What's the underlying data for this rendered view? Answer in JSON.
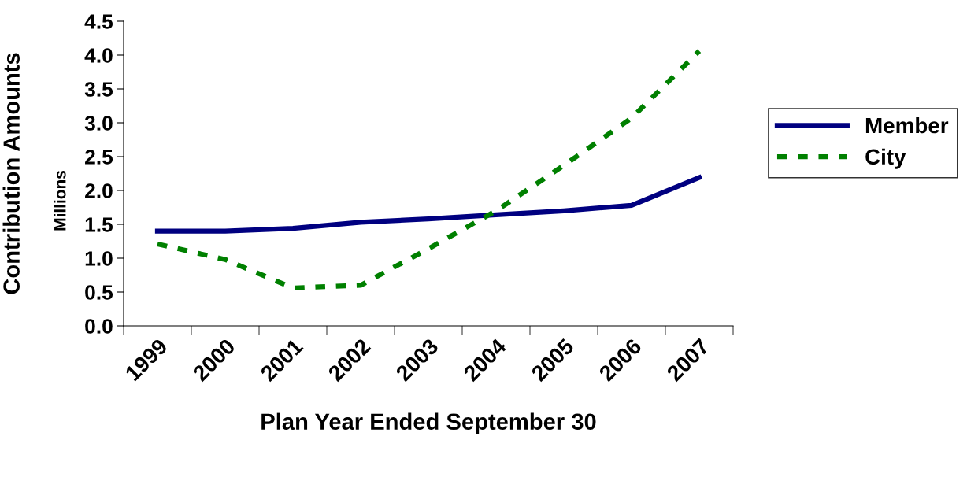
{
  "chart_data": {
    "type": "line",
    "xlabel": "Plan Year Ended September 30",
    "ylabel": "Contribution Amounts",
    "annotations": [
      "Millions"
    ],
    "categories": [
      "1999",
      "2000",
      "2001",
      "2002",
      "2003",
      "2004",
      "2005",
      "2006",
      "2007"
    ],
    "series": [
      {
        "name": "Member",
        "color": "#000080",
        "line_style": "solid",
        "values": [
          1.4,
          1.4,
          1.44,
          1.53,
          1.58,
          1.64,
          1.7,
          1.78,
          2.19
        ]
      },
      {
        "name": "City",
        "color": "#008000",
        "line_style": "dashed",
        "values": [
          1.21,
          0.98,
          0.56,
          0.6,
          1.14,
          1.7,
          2.37,
          3.07,
          4.06
        ]
      }
    ],
    "ylim": [
      0,
      4.5
    ],
    "yticks": [
      {
        "value": 0,
        "label": "0.0"
      },
      {
        "value": 0.5,
        "label": "0.5"
      },
      {
        "value": 1,
        "label": "1.0"
      },
      {
        "value": 1.5,
        "label": "1.5"
      },
      {
        "value": 2,
        "label": "2.0"
      },
      {
        "value": 2.5,
        "label": "2.5"
      },
      {
        "value": 3,
        "label": "3.0"
      },
      {
        "value": 3.5,
        "label": "3.5"
      },
      {
        "value": 4,
        "label": "4.0"
      },
      {
        "value": 4.5,
        "label": "4.5"
      }
    ],
    "grid": false,
    "legend": "right",
    "marker": "none"
  }
}
